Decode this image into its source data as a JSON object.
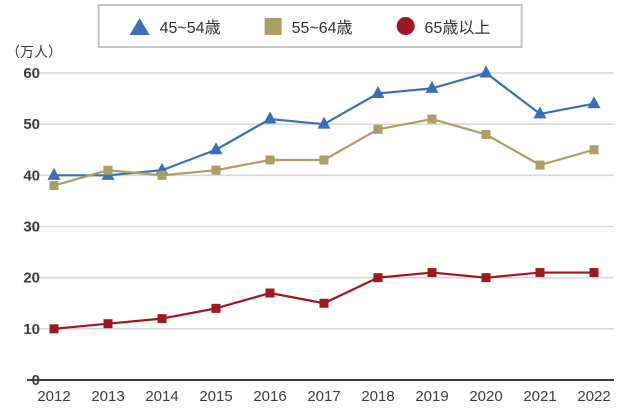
{
  "chart_data": {
    "type": "line",
    "title": "",
    "unit_label": "（万人）",
    "xlabel": "",
    "ylabel": "万人",
    "x": [
      "2012",
      "2013",
      "2014",
      "2015",
      "2016",
      "2017",
      "2018",
      "2019",
      "2020",
      "2021",
      "2022"
    ],
    "series": [
      {
        "name": "45~54歳",
        "color": "#3a6fba",
        "marker": "triangle",
        "legend_marker": "triangle",
        "values": [
          40,
          40,
          41,
          45,
          51,
          50,
          56,
          57,
          60,
          52,
          54
        ]
      },
      {
        "name": "55~64歳",
        "color": "#ad9e63",
        "marker": "square",
        "legend_marker": "square",
        "values": [
          38,
          41,
          40,
          41,
          43,
          43,
          49,
          51,
          48,
          42,
          45
        ]
      },
      {
        "name": "65歳以上",
        "color": "#9f1722",
        "marker": "square",
        "legend_marker": "circle",
        "values": [
          10,
          11,
          12,
          14,
          17,
          15,
          20,
          21,
          20,
          21,
          21
        ]
      }
    ],
    "ylim": [
      0,
      60
    ],
    "yticks": [
      0,
      10,
      20,
      30,
      40,
      50,
      60
    ],
    "grid": true,
    "grid_color": "#d9d9d9",
    "axis_color": "#3f3f3f",
    "legend_position": "top-center"
  }
}
